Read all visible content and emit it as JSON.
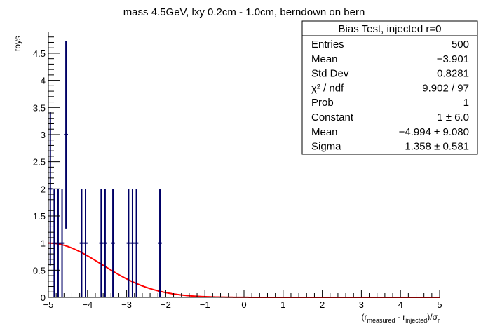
{
  "chart_data": {
    "type": "histogram",
    "title": "mass 4.5GeV, lxy 0.2cm - 1.0cm, berndown on bern",
    "ylabel": "toys",
    "xlabel": {
      "open": "(r",
      "sub1": "measured",
      "mid": " - r",
      "sub2": "injected",
      "close": ")/σ",
      "sub3": "r"
    },
    "xlim": [
      -5,
      5
    ],
    "ylim": [
      0,
      4.9
    ],
    "x_ticks": [
      -5,
      -4,
      -3,
      -2,
      -1,
      0,
      1,
      2,
      3,
      4,
      5
    ],
    "x_tick_labels": [
      "−5",
      "−4",
      "−3",
      "−2",
      "−1",
      "0",
      "1",
      "2",
      "3",
      "4",
      "5"
    ],
    "y_ticks": [
      0,
      0.5,
      1,
      1.5,
      2,
      2.5,
      3,
      3.5,
      4,
      4.5
    ],
    "y_tick_labels": [
      "0",
      "0.5",
      "1",
      "1.5",
      "2",
      "2.5",
      "3",
      "3.5",
      "4",
      "4.5"
    ],
    "bin_width": 0.1,
    "bins": [
      {
        "x": -4.95,
        "y": 2,
        "err": 1.414
      },
      {
        "x": -4.85,
        "y": 1,
        "err": 1.0
      },
      {
        "x": -4.75,
        "y": 1,
        "err": 1.0
      },
      {
        "x": -4.65,
        "y": 1,
        "err": 1.0
      },
      {
        "x": -4.55,
        "y": 3,
        "err": 1.732
      },
      {
        "x": -4.15,
        "y": 1,
        "err": 1.0
      },
      {
        "x": -4.05,
        "y": 1,
        "err": 1.0
      },
      {
        "x": -3.65,
        "y": 1,
        "err": 1.0
      },
      {
        "x": -3.55,
        "y": 1,
        "err": 1.0
      },
      {
        "x": -3.35,
        "y": 1,
        "err": 1.0
      },
      {
        "x": -2.95,
        "y": 1,
        "err": 1.0
      },
      {
        "x": -2.85,
        "y": 1,
        "err": 1.0
      },
      {
        "x": -2.75,
        "y": 1,
        "err": 1.0
      },
      {
        "x": -2.15,
        "y": 1,
        "err": 1.0
      }
    ],
    "fit": {
      "function": "gaus",
      "constant": 1.0,
      "mean": -4.994,
      "sigma": 1.358,
      "color": "#ff0000"
    },
    "colors": {
      "points": "#000066",
      "axis": "#000000"
    },
    "stats_box": {
      "title": "Bias Test, injected r=0",
      "placement": "top-right",
      "rows": [
        {
          "label": "Entries",
          "value": "500"
        },
        {
          "label": "Mean",
          "value": "−3.901"
        },
        {
          "label": "Std Dev",
          "value": "0.8281"
        },
        {
          "label": "χ² / ndf",
          "value": "9.902 / 97"
        },
        {
          "label": "Prob",
          "value": "1"
        },
        {
          "label": "Constant",
          "value": "1 ± 6.0"
        },
        {
          "label": "Mean",
          "value": "−4.994 ± 9.080"
        },
        {
          "label": "Sigma",
          "value": "1.358 ± 0.581"
        }
      ]
    }
  }
}
